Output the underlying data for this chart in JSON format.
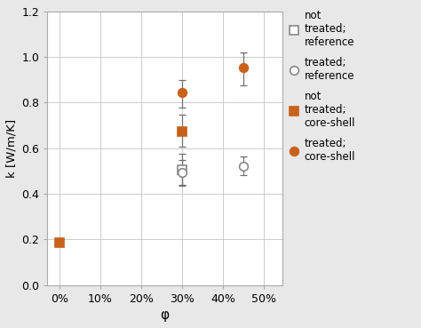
{
  "series": [
    {
      "label": "not\ntreated;\nreference",
      "marker": "s",
      "face_color": "white",
      "edge_color": "#888888",
      "x": [
        0.3
      ],
      "y": [
        0.505
      ],
      "yerr_lo": [
        0.065
      ],
      "yerr_hi": [
        0.07
      ]
    },
    {
      "label": "treated;\nreference",
      "marker": "o",
      "face_color": "white",
      "edge_color": "#888888",
      "x": [
        0.3,
        0.45
      ],
      "y": [
        0.492,
        0.522
      ],
      "yerr_lo": [
        0.055,
        0.038
      ],
      "yerr_hi": [
        0.055,
        0.042
      ]
    },
    {
      "label": "not\ntreated;\ncore-shell",
      "marker": "s",
      "face_color": "#C8611A",
      "edge_color": "#C8611A",
      "x": [
        0.0,
        0.3
      ],
      "y": [
        0.185,
        0.673
      ],
      "yerr_lo": [
        0.012,
        0.065
      ],
      "yerr_hi": [
        0.012,
        0.075
      ]
    },
    {
      "label": "treated;\ncore-shell",
      "marker": "o",
      "face_color": "#C8611A",
      "edge_color": "#C8611A",
      "x": [
        0.3,
        0.45
      ],
      "y": [
        0.845,
        0.955
      ],
      "yerr_lo": [
        0.065,
        0.08
      ],
      "yerr_hi": [
        0.055,
        0.065
      ]
    }
  ],
  "xlabel": "φ",
  "ylabel": "k [W/m/K]",
  "xlim": [
    -0.03,
    0.545
  ],
  "ylim": [
    0.0,
    1.2
  ],
  "xticks": [
    0.0,
    0.1,
    0.2,
    0.3,
    0.4,
    0.5
  ],
  "yticks": [
    0.0,
    0.2,
    0.4,
    0.6,
    0.8,
    1.0,
    1.2
  ],
  "figsize": [
    4.74,
    3.69
  ],
  "dpi": 100,
  "bg_color": "#e8e8e8",
  "plot_bg_color": "white"
}
